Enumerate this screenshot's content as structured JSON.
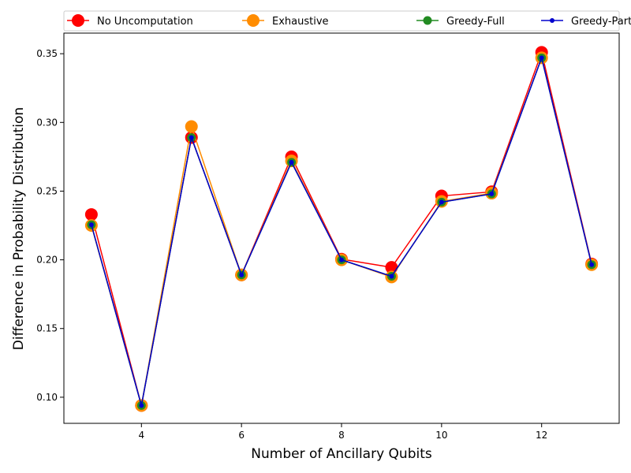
{
  "chart_data": {
    "type": "line",
    "xlabel": "Number of Ancillary Qubits",
    "ylabel": "Difference in Probability Distribution",
    "xlim": [
      2.45,
      13.55
    ],
    "ylim": [
      0.081,
      0.365
    ],
    "xticks": [
      4,
      6,
      8,
      10,
      12
    ],
    "yticks": [
      0.1,
      0.15,
      0.2,
      0.25,
      0.3,
      0.35
    ],
    "ytick_labels": [
      "0.10",
      "0.15",
      "0.20",
      "0.25",
      "0.30",
      "0.35"
    ],
    "legend_position": "top",
    "x": [
      3,
      4,
      5,
      6,
      7,
      8,
      9,
      10,
      11,
      12,
      13
    ],
    "series": [
      {
        "name": "No Uncomputation",
        "color": "#ff0000",
        "line_color": "#ff0000",
        "marker_size": 8,
        "values": [
          0.233,
          0.094,
          0.289,
          0.189,
          0.275,
          0.2005,
          0.1945,
          0.2465,
          0.2495,
          0.351,
          0.197
        ]
      },
      {
        "name": "Exhaustive",
        "color": "#ff8c00",
        "line_color": "#ff8c00",
        "marker_size": 8,
        "values": [
          0.225,
          0.094,
          0.297,
          0.189,
          0.272,
          0.2,
          0.1875,
          0.2425,
          0.2485,
          0.347,
          0.1965
        ]
      },
      {
        "name": "Greedy-Full",
        "color": "#228b22",
        "line_color": "#228b22",
        "marker_size": 5.5,
        "values": [
          0.2255,
          0.094,
          0.289,
          0.189,
          0.271,
          0.2,
          0.188,
          0.242,
          0.248,
          0.347,
          0.1965
        ]
      },
      {
        "name": "Greedy-Partial",
        "color": "#0000cd",
        "line_color": "#0000cd",
        "marker_size": 3,
        "values": [
          0.2255,
          0.094,
          0.289,
          0.189,
          0.271,
          0.2,
          0.188,
          0.242,
          0.248,
          0.347,
          0.1965
        ]
      }
    ]
  }
}
